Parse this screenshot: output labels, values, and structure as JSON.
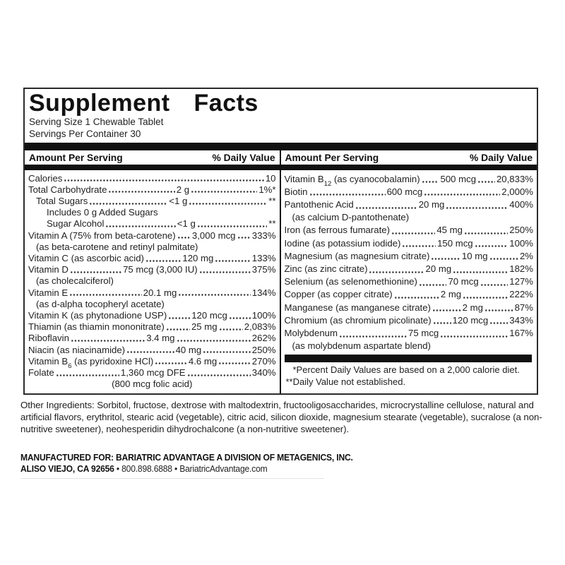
{
  "label": {
    "title": "Supplement Facts",
    "serving_size": "Serving Size 1 Chewable Tablet",
    "servings_per_container": "Servings Per Container 30",
    "column_header": {
      "amount": "Amount Per Serving",
      "daily_value": "% Daily Value"
    },
    "left_rows": [
      {
        "name": "Calories",
        "amount": "10"
      },
      {
        "name": "Total Carbohydrate",
        "amount": "2 g",
        "pct": "1%*"
      },
      {
        "name": "Total Sugars",
        "amount": "<1 g",
        "pct": "**",
        "indent": 1
      },
      {
        "name": "Includes 0 g Added Sugars",
        "indent": 2,
        "plain": true
      },
      {
        "name": "Sugar Alcohol",
        "amount": "<1 g",
        "pct": "**",
        "indent": 2
      },
      {
        "name": "Vitamin A (75% from beta-carotene)",
        "amount": "3,000 mcg",
        "pct": "333%"
      },
      {
        "name": "(as beta-carotene and retinyl palmitate)",
        "indent": 1,
        "plain": true
      },
      {
        "name": "Vitamin C (as ascorbic acid)",
        "amount": "120 mg",
        "pct": "133%"
      },
      {
        "name": "Vitamin D",
        "amount": "75 mcg (3,000 IU)",
        "pct": "375%"
      },
      {
        "name": "(as cholecalciferol)",
        "indent": 1,
        "plain": true
      },
      {
        "name": "Vitamin E",
        "amount": "20.1 mg",
        "pct": "134%"
      },
      {
        "name": "(as d-alpha tocopheryl acetate)",
        "indent": 1,
        "plain": true
      },
      {
        "name": "Vitamin K (as phytonadione USP)",
        "amount": "120 mcg",
        "pct": "100%"
      },
      {
        "name": "Thiamin (as thiamin mononitrate)",
        "amount": "25 mg",
        "pct": "2,083%"
      },
      {
        "name": "Riboflavin",
        "amount": "3.4 mg",
        "pct": "262%"
      },
      {
        "name": "Niacin (as niacinamide)",
        "amount": "40 mg",
        "pct": "250%"
      },
      {
        "name": [
          {
            "t": "Vitamin B"
          },
          {
            "t": "6",
            "sub": true
          },
          {
            "t": " (as pyridoxine HCl)"
          }
        ],
        "amount": "4.6 mg",
        "pct": "270%"
      },
      {
        "name": "Folate",
        "amount": "1,360 mcg DFE",
        "pct": "340%"
      },
      {
        "name": "(800 mcg folic acid)",
        "center": true,
        "plain": true
      }
    ],
    "right_rows": [
      {
        "name": [
          {
            "t": "Vitamin B"
          },
          {
            "t": "12",
            "sub": true
          },
          {
            "t": " (as cyanocobalamin)"
          }
        ],
        "amount": "500 mcg",
        "pct": "20,833%"
      },
      {
        "name": "Biotin",
        "amount": "600 mcg",
        "pct": "2,000%"
      },
      {
        "name": "Pantothenic Acid",
        "amount": "20 mg",
        "pct": "400%"
      },
      {
        "name": "(as calcium D-pantothenate)",
        "indent": 1,
        "plain": true
      },
      {
        "name": "Iron (as ferrous fumarate)",
        "amount": "45 mg",
        "pct": "250%"
      },
      {
        "name": "Iodine (as potassium iodide)",
        "amount": "150 mcg",
        "pct": "100%"
      },
      {
        "name": "Magnesium (as magnesium citrate)",
        "amount": "10 mg",
        "pct": "2%"
      },
      {
        "name": "Zinc (as zinc citrate)",
        "amount": "20 mg",
        "pct": "182%"
      },
      {
        "name": "Selenium (as selenomethionine)",
        "amount": "70 mcg",
        "pct": "127%"
      },
      {
        "name": "Copper (as copper citrate)",
        "amount": "2 mg",
        "pct": "222%"
      },
      {
        "name": "Manganese (as manganese citrate)",
        "amount": "2 mg",
        "pct": "87%"
      },
      {
        "name": "Chromium (as chromium picolinate)",
        "amount": "120 mcg",
        "pct": "343%"
      },
      {
        "name": "Molybdenum",
        "amount": "75 mcg",
        "pct": "167%"
      },
      {
        "name": "(as molybdenum aspartate blend)",
        "indent": 1,
        "plain": true
      }
    ],
    "footnotes": {
      "percent_daily_value": "*Percent Daily Values are based on a 2,000 calorie diet.",
      "daily_value_not_established": "**Daily Value not established."
    }
  },
  "other_ingredients": "Other Ingredients: Sorbitol, fructose, dextrose with maltodextrin, fructooligosaccharides, microcrystalline cellulose, natural and artificial flavors, erythritol, stearic acid (vegetable), citric acid, silicon dioxide, magnesium stearate (vegetable), sucralose (a non-nutritive sweetener), neohesperidin dihydrochalcone (a non-nutritive sweetener).",
  "manufacturer": {
    "line1": "MANUFACTURED FOR: BARIATRIC ADVANTAGE A DIVISION OF METAGENICS, INC.",
    "line2_location": "ALISO VIEJO, CA 92656",
    "line2_contact": " • 800.898.6888 • BariatricAdvantage.com"
  },
  "colors": {
    "bar": "#111111",
    "border": "#2b2b2b",
    "text": "#222222",
    "background": "#ffffff"
  }
}
